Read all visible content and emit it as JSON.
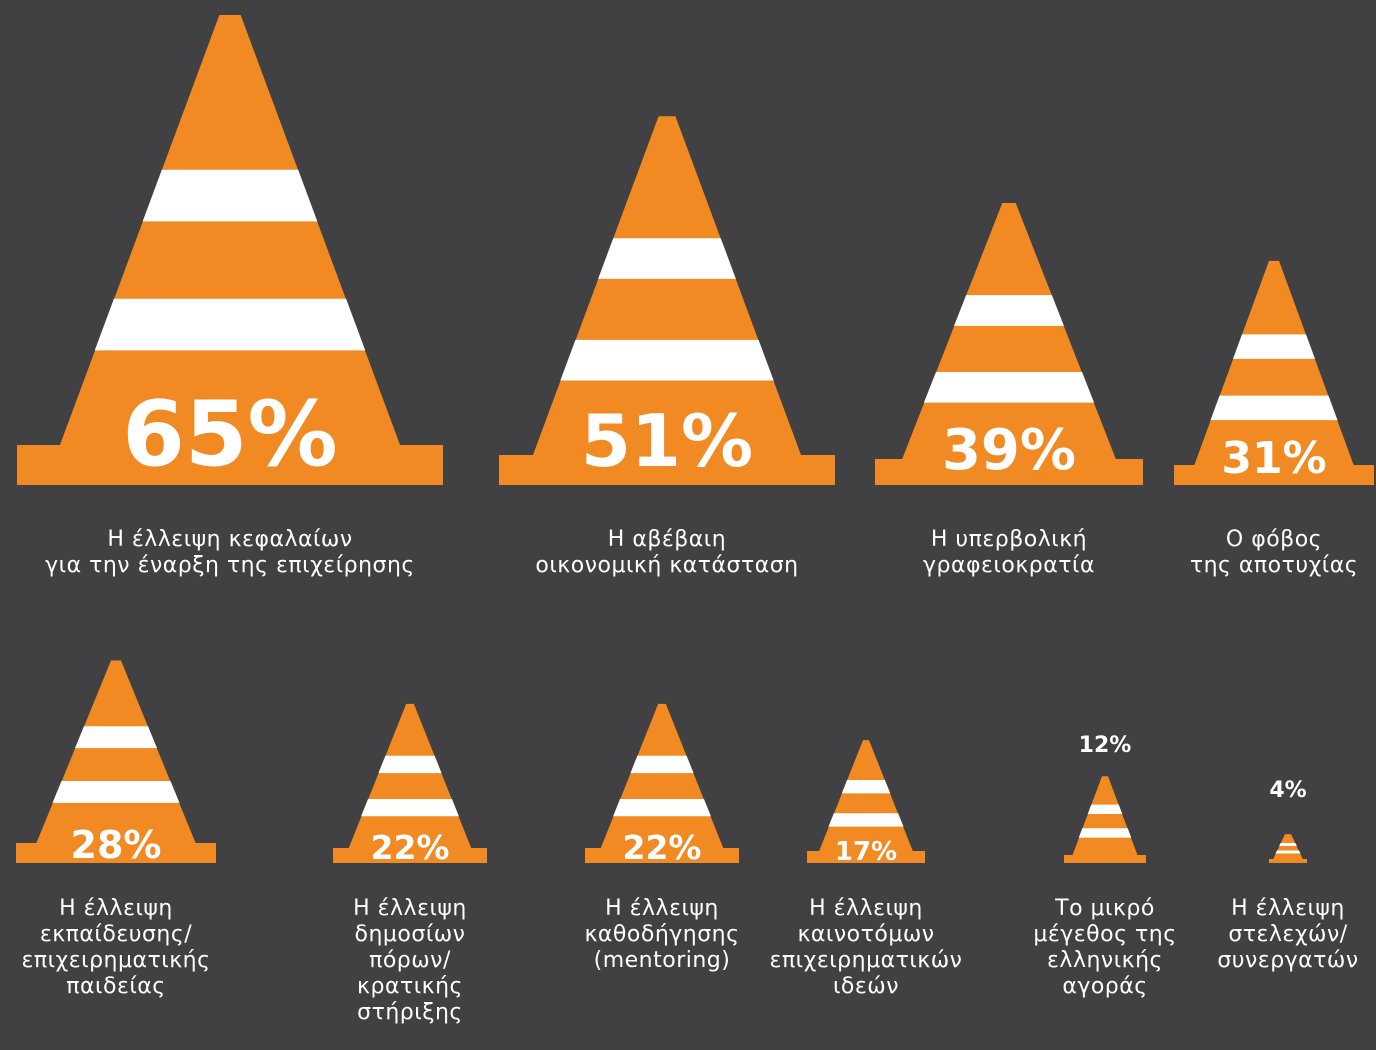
{
  "colors": {
    "background": "#414042",
    "cone": "#f28a23",
    "stripe": "#ffffff",
    "text": "#ffffff"
  },
  "chart_data": {
    "type": "bar",
    "categories": [
      [
        "Η έλλειψη κεφαλαίων",
        "για την έναρξη της επιχείρησης"
      ],
      [
        "Η αβέβαιη",
        "οικονομική κατάσταση"
      ],
      [
        "Η υπερβολική",
        "γραφειοκρατία"
      ],
      [
        "Ο φόβος",
        "της αποτυχίας"
      ],
      [
        "Η έλλειψη",
        "εκπαίδευσης/",
        "επιχειρηματικής",
        "παιδείας"
      ],
      [
        "Η έλλειψη",
        "δημοσίων",
        "πόρων/",
        "κρατικής",
        "στήριξης"
      ],
      [
        "Η έλλειψη",
        "καθοδήγησης",
        "(mentoring)"
      ],
      [
        "Η έλλειψη",
        "καινοτόμων",
        "επιχειρηματικών",
        "ιδεών"
      ],
      [
        "Το μικρό",
        "μέγεθος της",
        "ελληνικής",
        "αγοράς"
      ],
      [
        "Η έλλειψη",
        "στελεχών/",
        "συνεργατών"
      ]
    ],
    "values": [
      65,
      51,
      39,
      31,
      28,
      22,
      22,
      17,
      12,
      4
    ],
    "labels": [
      "65%",
      "51%",
      "39%",
      "31%",
      "28%",
      "22%",
      "22%",
      "17%",
      "12%",
      "4%"
    ]
  }
}
